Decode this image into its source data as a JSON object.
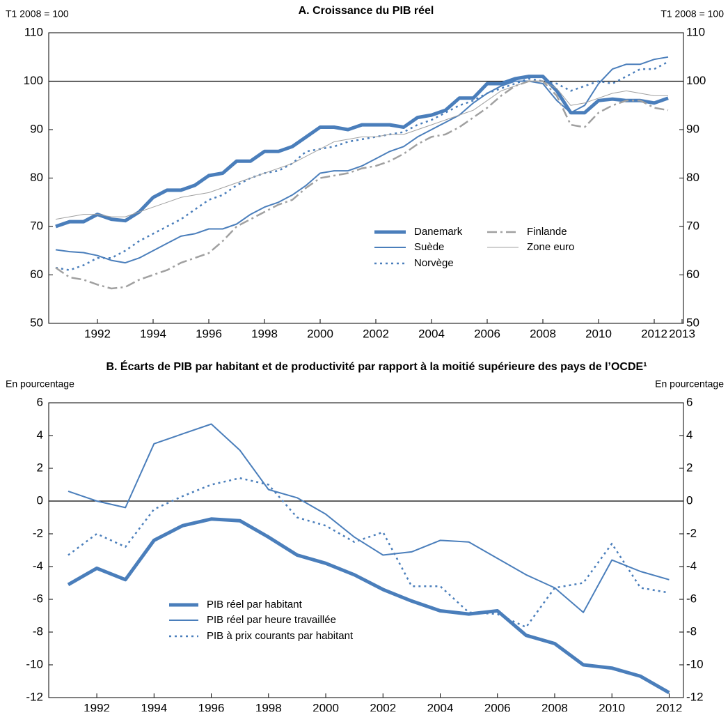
{
  "chart_data": [
    {
      "type": "line",
      "title": "A. Croissance du PIB réel",
      "ylabel": "T1 2008 = 100",
      "y2label": "T1 2008 = 100",
      "xlim": [
        1990.25,
        2013.05
      ],
      "ylim": [
        50,
        110
      ],
      "xticks": [
        1992,
        1994,
        1996,
        1998,
        2000,
        2002,
        2004,
        2006,
        2008,
        2010,
        2012,
        2013
      ],
      "yticks": [
        50,
        60,
        70,
        80,
        90,
        100,
        110
      ],
      "reference_line": 100,
      "x": [
        1990.5,
        1991,
        1991.5,
        1992,
        1992.5,
        1993,
        1993.5,
        1994,
        1994.5,
        1995,
        1995.5,
        1996,
        1996.5,
        1997,
        1997.5,
        1998,
        1998.5,
        1999,
        1999.5,
        2000,
        2000.5,
        2001,
        2001.5,
        2002,
        2002.5,
        2003,
        2003.5,
        2004,
        2004.5,
        2005,
        2005.5,
        2006,
        2006.5,
        2007,
        2007.5,
        2008,
        2008.5,
        2009,
        2009.5,
        2010,
        2010.5,
        2011,
        2011.5,
        2012,
        2012.5
      ],
      "series": [
        {
          "name": "Danemark",
          "color": "#4a7ebb",
          "style": "thick",
          "values": [
            70,
            71,
            71,
            72.5,
            71.5,
            71.2,
            73,
            76,
            77.5,
            77.5,
            78.5,
            80.5,
            81,
            83.5,
            83.5,
            85.5,
            85.5,
            86.5,
            88.5,
            90.5,
            90.5,
            90,
            91,
            91,
            91,
            90.5,
            92.5,
            93,
            94,
            96.5,
            96.5,
            99.5,
            99.5,
            100.5,
            101,
            101,
            98,
            93.5,
            93.5,
            96,
            96.3,
            96,
            96,
            95.5,
            96.5
          ]
        },
        {
          "name": "Suède",
          "color": "#4a7ebb",
          "style": "solid",
          "values": [
            65.2,
            64.8,
            64.6,
            64,
            63,
            62.5,
            63.5,
            65,
            66.5,
            68,
            68.5,
            69.5,
            69.5,
            70.5,
            72.5,
            74,
            75,
            76.5,
            78.5,
            81,
            81.5,
            81.5,
            82.5,
            84,
            85.5,
            86.5,
            88.5,
            90,
            91.5,
            93,
            95.5,
            97.5,
            99,
            100,
            100,
            99.5,
            96,
            93.5,
            95,
            99.5,
            102.5,
            103.5,
            103.5,
            104.5,
            105
          ]
        },
        {
          "name": "Norvège",
          "color": "#4a7ebb",
          "style": "dotted",
          "values": [
            61.5,
            61,
            62,
            63.5,
            63.5,
            65,
            67,
            68.5,
            70,
            71.5,
            73.5,
            75.5,
            76.5,
            78.5,
            80,
            81,
            81.5,
            83,
            85.5,
            86,
            86.5,
            87.5,
            88,
            88.5,
            89,
            89.5,
            91,
            92,
            93.5,
            95,
            96,
            97.5,
            98.5,
            99.5,
            100.5,
            100,
            99.5,
            98,
            99,
            100,
            99.5,
            101,
            102.5,
            102.5,
            104
          ]
        },
        {
          "name": "Finlande",
          "color": "#a0a0a0",
          "style": "dash-dot",
          "values": [
            61.5,
            59.5,
            59,
            58,
            57.2,
            57.5,
            59,
            60,
            61,
            62.5,
            63.5,
            64.5,
            67,
            70,
            71.5,
            73,
            74.5,
            75.5,
            78,
            80,
            80.5,
            81,
            82,
            82.5,
            83.5,
            85,
            87,
            88.5,
            89,
            90.5,
            92.5,
            94.5,
            97,
            99,
            100,
            100,
            97,
            91,
            90.5,
            93.5,
            95,
            96,
            96,
            94.5,
            94
          ]
        },
        {
          "name": "Zone euro",
          "color": "#a0a0a0",
          "style": "thin",
          "values": [
            71.5,
            72,
            72.5,
            72.5,
            72,
            72,
            73,
            74,
            75,
            76,
            76.5,
            77,
            78,
            79,
            80,
            81,
            82,
            83,
            84.5,
            86,
            87.5,
            88,
            88.5,
            88.5,
            89,
            89,
            90,
            91,
            92,
            93,
            94,
            96,
            98,
            99,
            100,
            100,
            98.5,
            95,
            95.5,
            96.5,
            97.5,
            98,
            97.5,
            97,
            97
          ]
        }
      ]
    },
    {
      "type": "line",
      "title": "B. Écarts de PIB par habitant et de productivité par rapport à la moitié supérieure des pays de l’OCDE¹",
      "ylabel": "En pourcentage",
      "y2label": "En pourcentage",
      "xlim": [
        1990.32,
        2012.5
      ],
      "ylim": [
        -12,
        6
      ],
      "xticks": [
        1992,
        1994,
        1996,
        1998,
        2000,
        2002,
        2004,
        2006,
        2008,
        2010,
        2012
      ],
      "yticks": [
        -12,
        -10,
        -8,
        -6,
        -4,
        -2,
        0,
        2,
        4,
        6
      ],
      "reference_line": 0,
      "x": [
        1991,
        1992,
        1993,
        1994,
        1995,
        1996,
        1997,
        1998,
        1999,
        2000,
        2001,
        2002,
        2003,
        2004,
        2005,
        2006,
        2007,
        2008,
        2009,
        2010,
        2011,
        2012
      ],
      "series": [
        {
          "name": "PIB réel par habitant",
          "color": "#4a7ebb",
          "style": "thick",
          "values": [
            -5.1,
            -4.1,
            -4.8,
            -2.4,
            -1.5,
            -1.1,
            -1.2,
            -2.2,
            -3.3,
            -3.8,
            -4.5,
            -5.4,
            -6.1,
            -6.7,
            -6.9,
            -6.7,
            -8.2,
            -8.7,
            -10,
            -10.2,
            -10.7,
            -11.7
          ]
        },
        {
          "name": "PIB réel par heure travaillée",
          "color": "#4a7ebb",
          "style": "solid",
          "values": [
            0.6,
            0,
            -0.4,
            3.5,
            4.1,
            4.7,
            3.1,
            0.7,
            0.2,
            -0.8,
            -2.2,
            -3.3,
            -3.1,
            -2.4,
            -2.5,
            -3.5,
            -4.5,
            -5.3,
            -6.8,
            -3.6,
            -4.3,
            -4.8
          ]
        },
        {
          "name": "PIB à prix courants par habitant",
          "color": "#4a7ebb",
          "style": "dotted",
          "values": [
            -3.3,
            -2,
            -2.8,
            -0.5,
            0.3,
            1,
            1.4,
            1,
            -1,
            -1.5,
            -2.5,
            -1.9,
            -5.2,
            -5.2,
            -6.8,
            -6.9,
            -7.7,
            -5.3,
            -5,
            -2.6,
            -5.3,
            -5.6
          ]
        }
      ]
    }
  ]
}
